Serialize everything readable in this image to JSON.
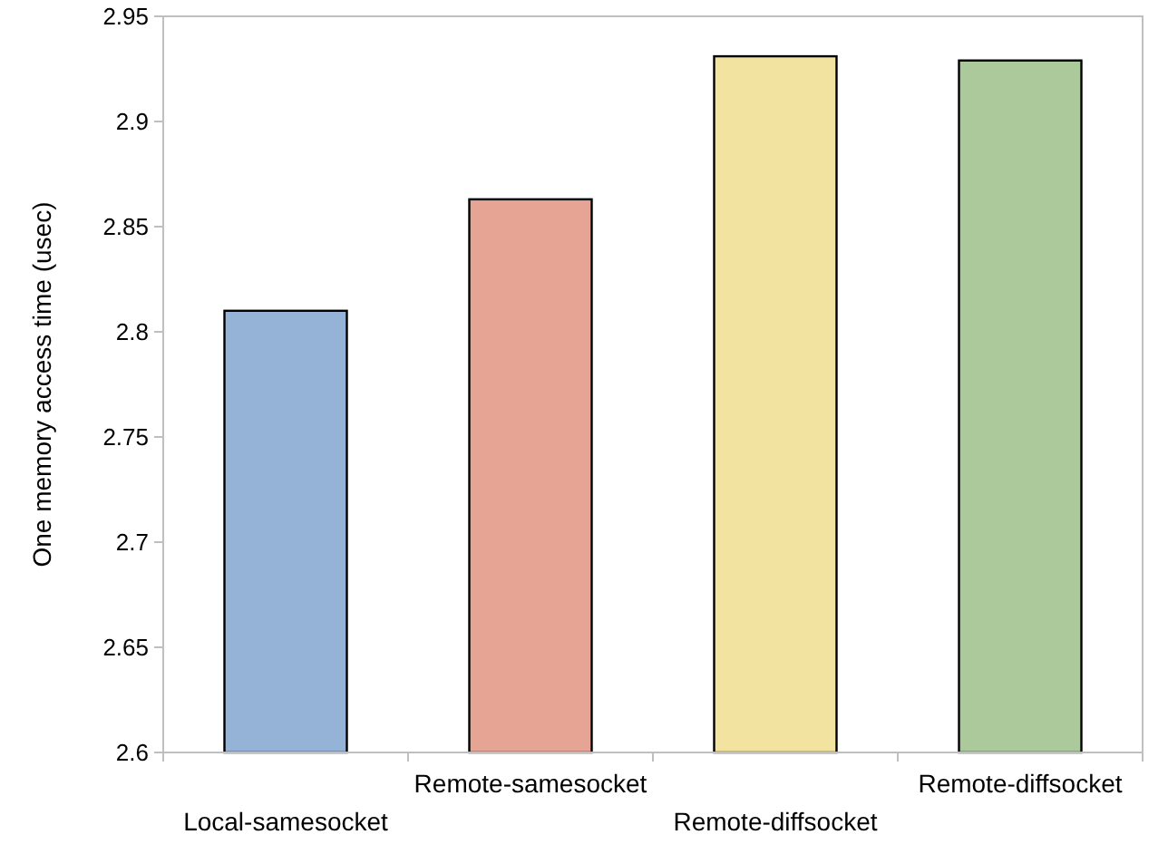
{
  "chart_data": {
    "type": "bar",
    "ylabel": "One memory access time (usec)",
    "categories": [
      "Local-samesocket",
      "Remote-samesocket",
      "Remote-diffsocket",
      "Remote-diffsocket"
    ],
    "values": [
      2.81,
      2.863,
      2.931,
      2.929
    ],
    "colors": [
      "#95b3d7",
      "#e6a494",
      "#f2e3a0",
      "#acc99c"
    ],
    "ylim": [
      2.6,
      2.95
    ],
    "yticks": [
      2.6,
      2.65,
      2.7,
      2.75,
      2.8,
      2.85,
      2.9,
      2.95
    ],
    "grid": false
  }
}
